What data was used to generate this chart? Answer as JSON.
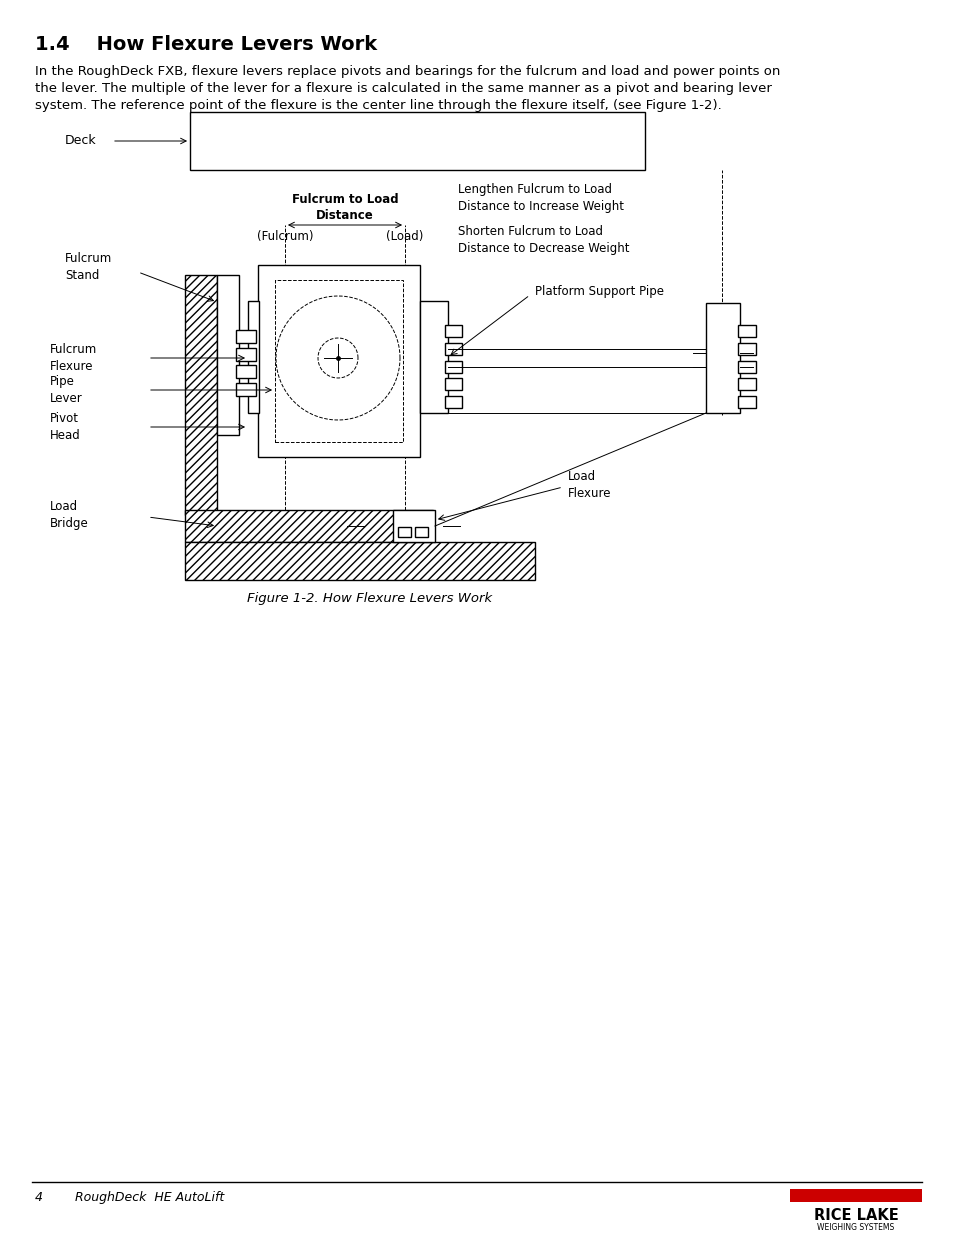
{
  "title": "1.4    How Flexure Levers Work",
  "body_line1": "In the RoughDeck FXB, flexure levers replace pivots and bearings for the fulcrum and load and power points on",
  "body_line2": "the lever. The multiple of the lever for a flexure is calculated in the same manner as a pivot and bearing lever",
  "body_line3": "system. The reference point of the flexure is the center line through the flexure itself, (see Figure 1-2).",
  "caption": "Figure 1-2. How Flexure Levers Work",
  "footer_left": "4        RoughDeck  HE AutoLift",
  "label_deck": "Deck",
  "label_fulcrum_stand": "Fulcrum\nStand",
  "label_fulcrum_flexure": "Fulcrum\nFlexure",
  "label_pipe_lever": "Pipe\nLever",
  "label_pivot_head": "Pivot\nHead",
  "label_load_bridge": "Load\nBridge",
  "label_load_flexure": "Load\nFlexure",
  "label_platform_pipe": "Platform Support Pipe",
  "label_fulcrum_load_dist": "Fulcrum to Load\nDistance",
  "label_fulcrum": "(Fulcrum)",
  "label_load": "(Load)",
  "label_lengthen": "Lengthen Fulcrum to Load\nDistance to Increase Weight",
  "label_shorten": "Shorten Fulcrum to Load\nDistance to Decrease Weight",
  "label_rice_lake": "RICE LAKE",
  "label_weighing": "WEIGHING SYSTEMS",
  "bg_color": "#ffffff",
  "line_color": "#000000",
  "rice_lake_red": "#cc0000",
  "title_fontsize": 14,
  "body_fontsize": 9.5,
  "caption_fontsize": 9.5,
  "footer_fontsize": 9
}
